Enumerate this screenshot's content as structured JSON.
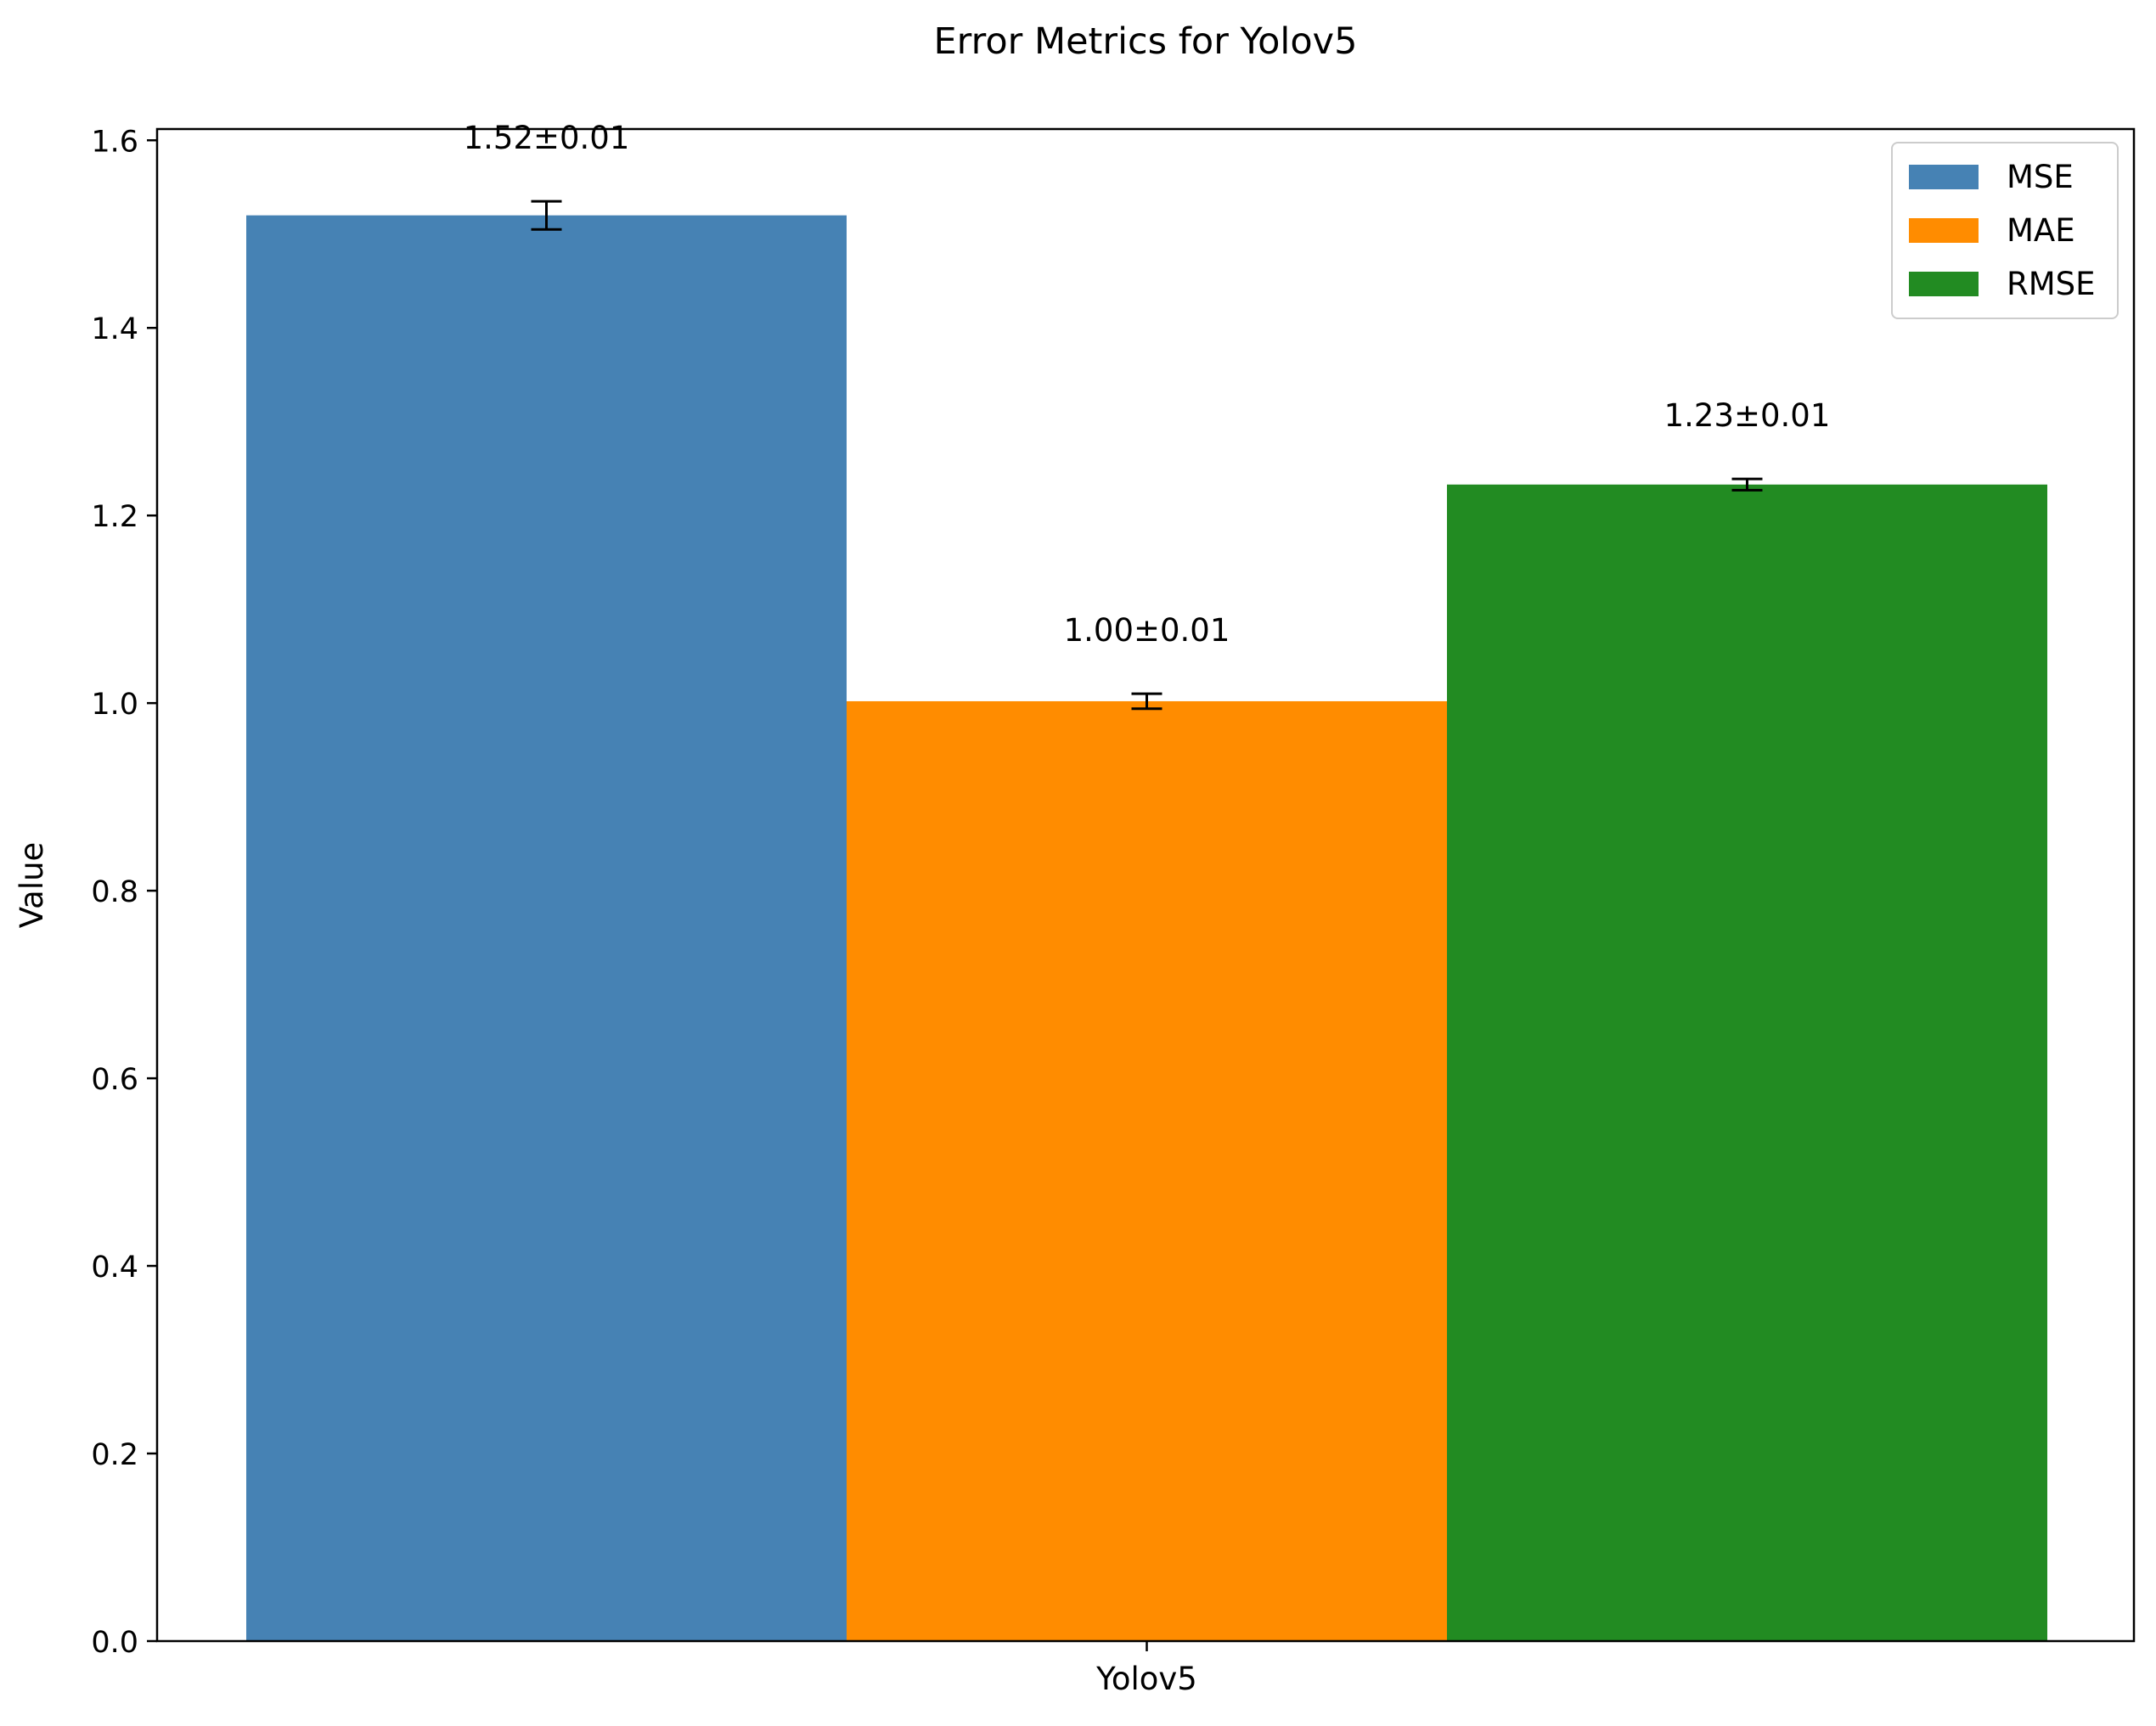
{
  "chart_data": {
    "type": "bar",
    "title": "Error Metrics for Yolov5",
    "xlabel": "",
    "ylabel": "Value",
    "categories": [
      "Yolov5"
    ],
    "ylim": [
      0,
      1.612
    ],
    "yticks": [
      "0.0",
      "0.2",
      "0.4",
      "0.6",
      "0.8",
      "1.0",
      "1.2",
      "1.4",
      "1.6"
    ],
    "grid": false,
    "legend_position": "top-right",
    "series": [
      {
        "name": "MSE",
        "values": [
          1.52
        ],
        "error": [
          0.015
        ],
        "label": "1.52±0.01",
        "color": "#4682b4"
      },
      {
        "name": "MAE",
        "values": [
          1.002
        ],
        "error": [
          0.008
        ],
        "label": "1.00±0.01",
        "color": "#ff8c00"
      },
      {
        "name": "RMSE",
        "values": [
          1.233
        ],
        "error": [
          0.006
        ],
        "label": "1.23±0.01",
        "color": "#228b22"
      }
    ]
  }
}
